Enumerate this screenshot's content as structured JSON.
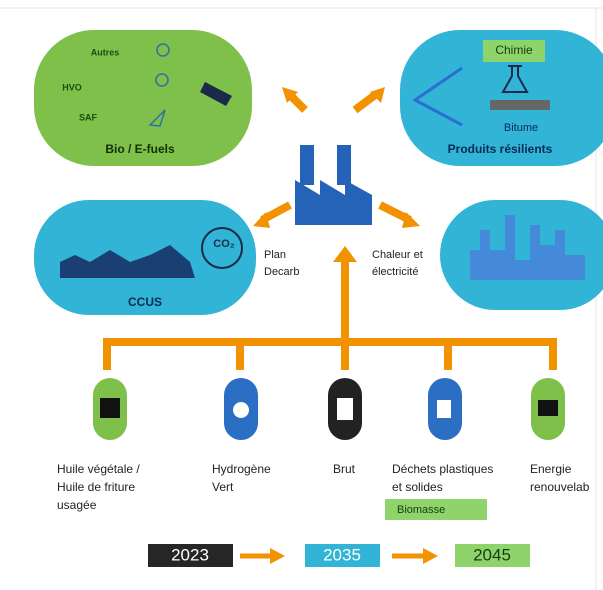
{
  "top_left": {
    "items": [
      "Autres",
      "HVO",
      "SAF"
    ],
    "title": "Bio / E-fuels"
  },
  "top_right": {
    "chimie": "Chimie",
    "bitume": "Bitume",
    "title": "Produits résilients"
  },
  "middle_left": {
    "title": "CCUS",
    "icon": "CO₂"
  },
  "plan": [
    "Plan",
    "Decarb"
  ],
  "chaleur": [
    "Chaleur et",
    "électricité"
  ],
  "sources": [
    {
      "lines": [
        "Huile végétale /",
        "Huile de friture",
        "usagée"
      ]
    },
    {
      "lines": [
        "Hydrogène",
        "Vert"
      ]
    },
    {
      "lines": [
        "Brut"
      ]
    },
    {
      "lines": [
        "Déchets plastiques",
        "et solides"
      ]
    },
    {
      "lines": [
        "Energie",
        "renouvelab"
      ]
    }
  ],
  "biomasse": "Biomasse",
  "timeline": [
    "2023",
    "2035",
    "2045"
  ]
}
